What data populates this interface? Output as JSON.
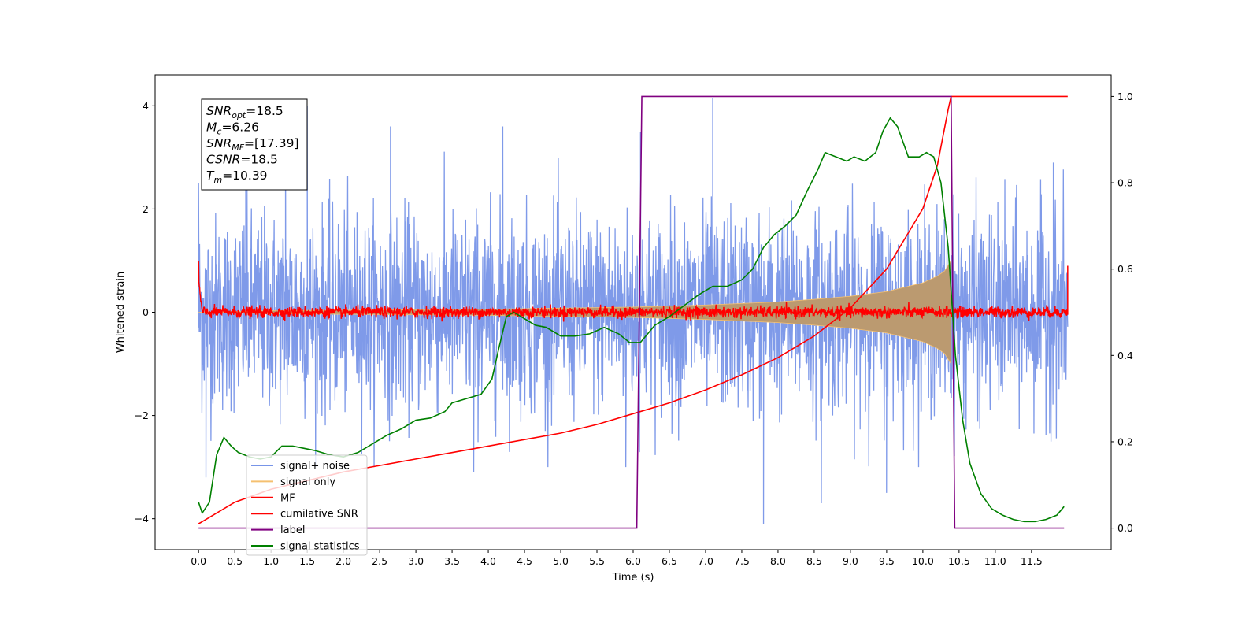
{
  "chart_data": {
    "type": "line",
    "title": "",
    "xlabel": "Time (s)",
    "ylabel": "Whitened strain",
    "y2label": "",
    "xlim": [
      -0.6,
      12.6
    ],
    "ylim": [
      -4.6,
      4.6
    ],
    "y2lim": [
      -0.05,
      1.05
    ],
    "x_ticks": [
      0.0,
      0.5,
      1.0,
      1.5,
      2.0,
      2.5,
      3.0,
      3.5,
      4.0,
      4.5,
      5.0,
      5.5,
      6.0,
      6.5,
      7.0,
      7.5,
      8.0,
      8.5,
      9.0,
      9.5,
      10.0,
      10.5,
      11.0,
      11.5
    ],
    "x_tick_labels": [
      "0.0",
      "0.5",
      "1.0",
      "1.5",
      "2.0",
      "2.5",
      "3.0",
      "3.5",
      "4.0",
      "4.5",
      "5.0",
      "5.5",
      "6.0",
      "6.5",
      "7.0",
      "7.5",
      "8.0",
      "8.5",
      "9.0",
      "9.5",
      "10.0",
      "10.5",
      "11.0",
      "11.5"
    ],
    "y_ticks": [
      -4,
      -2,
      0,
      2,
      4
    ],
    "y_tick_labels": [
      "−4",
      "−2",
      "0",
      "2",
      "4"
    ],
    "y2_ticks": [
      0.0,
      0.2,
      0.4,
      0.6,
      0.8,
      1.0
    ],
    "y2_tick_labels": [
      "0.0",
      "0.2",
      "0.4",
      "0.6",
      "0.8",
      "1.0"
    ],
    "grid": false,
    "legend_position": "lower-left",
    "annotation_box": {
      "position": "top-left",
      "lines": [
        {
          "symbol": "SNR",
          "sub": "opt",
          "value": "=18.5"
        },
        {
          "symbol": "M",
          "sub": "c",
          "value": "=6.26"
        },
        {
          "symbol": "SNR",
          "sub": "MF",
          "value": "=[17.39]"
        },
        {
          "symbol": "CSNR",
          "sub": "",
          "value": "=18.5"
        },
        {
          "symbol": "T",
          "sub": "m",
          "value": "=10.39"
        }
      ]
    },
    "series": [
      {
        "name": "signal+ noise",
        "kind": "noise_band",
        "axis": "left",
        "color": "#7895e8",
        "x_range": [
          0.0,
          12.0
        ],
        "typical_envelope": [
          -1.7,
          1.9
        ],
        "peaks": [
          {
            "x": 0.0,
            "y": 2.5
          },
          {
            "x": 0.1,
            "y": -3.2
          },
          {
            "x": 0.65,
            "y": 2.9
          },
          {
            "x": 1.2,
            "y": 3.9
          },
          {
            "x": 1.5,
            "y": 4.0
          },
          {
            "x": 1.95,
            "y": 3.5
          },
          {
            "x": 2.65,
            "y": 3.6
          },
          {
            "x": 3.8,
            "y": -3.1
          },
          {
            "x": 4.2,
            "y": 3.6
          },
          {
            "x": 5.9,
            "y": -3.0
          },
          {
            "x": 6.1,
            "y": 3.5
          },
          {
            "x": 7.1,
            "y": 4.15
          },
          {
            "x": 7.8,
            "y": -4.1
          },
          {
            "x": 8.6,
            "y": -3.7
          },
          {
            "x": 9.5,
            "y": -3.5
          },
          {
            "x": 11.8,
            "y": 2.9
          }
        ]
      },
      {
        "name": "signal only",
        "kind": "chirp_envelope",
        "axis": "left",
        "color": "#f5c070",
        "envelope": [
          {
            "x": 0.0,
            "a": 0.0
          },
          {
            "x": 1.0,
            "a": 0.03
          },
          {
            "x": 2.0,
            "a": 0.04
          },
          {
            "x": 3.0,
            "a": 0.05
          },
          {
            "x": 4.0,
            "a": 0.06
          },
          {
            "x": 5.0,
            "a": 0.08
          },
          {
            "x": 6.0,
            "a": 0.1
          },
          {
            "x": 7.0,
            "a": 0.14
          },
          {
            "x": 7.5,
            "a": 0.17
          },
          {
            "x": 8.0,
            "a": 0.2
          },
          {
            "x": 8.5,
            "a": 0.25
          },
          {
            "x": 9.0,
            "a": 0.31
          },
          {
            "x": 9.5,
            "a": 0.4
          },
          {
            "x": 10.0,
            "a": 0.57
          },
          {
            "x": 10.2,
            "a": 0.7
          },
          {
            "x": 10.3,
            "a": 0.8
          },
          {
            "x": 10.39,
            "a": 1.0
          },
          {
            "x": 10.4,
            "a": 0.0
          }
        ]
      },
      {
        "name": "MF",
        "kind": "noisy_flat",
        "axis": "left",
        "color": "#ff0000",
        "x_range": [
          0.0,
          12.0
        ],
        "center": 0.0,
        "amplitude": 0.12,
        "edge_spikes": [
          {
            "x": 0.0,
            "y": 1.0
          },
          {
            "x": 12.0,
            "y": 0.9
          }
        ]
      },
      {
        "name": "cumilative SNR",
        "kind": "line",
        "axis": "right",
        "color": "#ff0000",
        "points": [
          {
            "x": 0.0,
            "y": 0.01
          },
          {
            "x": 0.5,
            "y": 0.06
          },
          {
            "x": 1.0,
            "y": 0.09
          },
          {
            "x": 1.5,
            "y": 0.11
          },
          {
            "x": 2.0,
            "y": 0.13
          },
          {
            "x": 2.5,
            "y": 0.145
          },
          {
            "x": 3.0,
            "y": 0.16
          },
          {
            "x": 3.5,
            "y": 0.175
          },
          {
            "x": 4.0,
            "y": 0.19
          },
          {
            "x": 4.5,
            "y": 0.205
          },
          {
            "x": 5.0,
            "y": 0.22
          },
          {
            "x": 5.5,
            "y": 0.24
          },
          {
            "x": 6.0,
            "y": 0.265
          },
          {
            "x": 6.5,
            "y": 0.29
          },
          {
            "x": 7.0,
            "y": 0.32
          },
          {
            "x": 7.5,
            "y": 0.355
          },
          {
            "x": 8.0,
            "y": 0.395
          },
          {
            "x": 8.5,
            "y": 0.445
          },
          {
            "x": 9.0,
            "y": 0.51
          },
          {
            "x": 9.5,
            "y": 0.6
          },
          {
            "x": 10.0,
            "y": 0.74
          },
          {
            "x": 10.2,
            "y": 0.84
          },
          {
            "x": 10.35,
            "y": 0.97
          },
          {
            "x": 10.39,
            "y": 1.0
          },
          {
            "x": 12.0,
            "y": 1.0
          }
        ]
      },
      {
        "name": "label",
        "kind": "line",
        "axis": "right",
        "color": "#800080",
        "points": [
          {
            "x": 0.0,
            "y": 0.0
          },
          {
            "x": 6.05,
            "y": 0.0
          },
          {
            "x": 6.12,
            "y": 1.0
          },
          {
            "x": 10.39,
            "y": 1.0
          },
          {
            "x": 10.44,
            "y": 0.0
          },
          {
            "x": 11.95,
            "y": 0.0
          }
        ]
      },
      {
        "name": "signal statistics",
        "kind": "line",
        "axis": "right",
        "color": "#008000",
        "points": [
          {
            "x": 0.0,
            "y": 0.06
          },
          {
            "x": 0.05,
            "y": 0.035
          },
          {
            "x": 0.15,
            "y": 0.06
          },
          {
            "x": 0.25,
            "y": 0.17
          },
          {
            "x": 0.35,
            "y": 0.21
          },
          {
            "x": 0.45,
            "y": 0.19
          },
          {
            "x": 0.55,
            "y": 0.175
          },
          {
            "x": 0.7,
            "y": 0.165
          },
          {
            "x": 0.85,
            "y": 0.16
          },
          {
            "x": 1.0,
            "y": 0.165
          },
          {
            "x": 1.15,
            "y": 0.19
          },
          {
            "x": 1.3,
            "y": 0.19
          },
          {
            "x": 1.45,
            "y": 0.185
          },
          {
            "x": 1.6,
            "y": 0.18
          },
          {
            "x": 1.8,
            "y": 0.17
          },
          {
            "x": 2.0,
            "y": 0.165
          },
          {
            "x": 2.2,
            "y": 0.175
          },
          {
            "x": 2.4,
            "y": 0.195
          },
          {
            "x": 2.6,
            "y": 0.215
          },
          {
            "x": 2.8,
            "y": 0.23
          },
          {
            "x": 3.0,
            "y": 0.25
          },
          {
            "x": 3.2,
            "y": 0.255
          },
          {
            "x": 3.4,
            "y": 0.27
          },
          {
            "x": 3.5,
            "y": 0.29
          },
          {
            "x": 3.7,
            "y": 0.3
          },
          {
            "x": 3.9,
            "y": 0.31
          },
          {
            "x": 4.05,
            "y": 0.345
          },
          {
            "x": 4.15,
            "y": 0.42
          },
          {
            "x": 4.25,
            "y": 0.49
          },
          {
            "x": 4.35,
            "y": 0.5
          },
          {
            "x": 4.5,
            "y": 0.485
          },
          {
            "x": 4.65,
            "y": 0.47
          },
          {
            "x": 4.8,
            "y": 0.465
          },
          {
            "x": 5.0,
            "y": 0.445
          },
          {
            "x": 5.2,
            "y": 0.445
          },
          {
            "x": 5.4,
            "y": 0.45
          },
          {
            "x": 5.6,
            "y": 0.465
          },
          {
            "x": 5.8,
            "y": 0.45
          },
          {
            "x": 5.95,
            "y": 0.43
          },
          {
            "x": 6.1,
            "y": 0.43
          },
          {
            "x": 6.3,
            "y": 0.47
          },
          {
            "x": 6.5,
            "y": 0.49
          },
          {
            "x": 6.7,
            "y": 0.515
          },
          {
            "x": 6.9,
            "y": 0.54
          },
          {
            "x": 7.1,
            "y": 0.56
          },
          {
            "x": 7.3,
            "y": 0.56
          },
          {
            "x": 7.5,
            "y": 0.575
          },
          {
            "x": 7.65,
            "y": 0.6
          },
          {
            "x": 7.8,
            "y": 0.65
          },
          {
            "x": 7.95,
            "y": 0.68
          },
          {
            "x": 8.1,
            "y": 0.7
          },
          {
            "x": 8.25,
            "y": 0.725
          },
          {
            "x": 8.4,
            "y": 0.78
          },
          {
            "x": 8.55,
            "y": 0.83
          },
          {
            "x": 8.65,
            "y": 0.87
          },
          {
            "x": 8.8,
            "y": 0.86
          },
          {
            "x": 8.95,
            "y": 0.85
          },
          {
            "x": 9.05,
            "y": 0.86
          },
          {
            "x": 9.2,
            "y": 0.85
          },
          {
            "x": 9.35,
            "y": 0.87
          },
          {
            "x": 9.45,
            "y": 0.92
          },
          {
            "x": 9.55,
            "y": 0.95
          },
          {
            "x": 9.65,
            "y": 0.93
          },
          {
            "x": 9.8,
            "y": 0.86
          },
          {
            "x": 9.95,
            "y": 0.86
          },
          {
            "x": 10.05,
            "y": 0.87
          },
          {
            "x": 10.15,
            "y": 0.86
          },
          {
            "x": 10.25,
            "y": 0.8
          },
          {
            "x": 10.35,
            "y": 0.65
          },
          {
            "x": 10.45,
            "y": 0.4
          },
          {
            "x": 10.55,
            "y": 0.25
          },
          {
            "x": 10.65,
            "y": 0.15
          },
          {
            "x": 10.8,
            "y": 0.08
          },
          {
            "x": 10.95,
            "y": 0.045
          },
          {
            "x": 11.1,
            "y": 0.03
          },
          {
            "x": 11.25,
            "y": 0.02
          },
          {
            "x": 11.4,
            "y": 0.015
          },
          {
            "x": 11.55,
            "y": 0.015
          },
          {
            "x": 11.7,
            "y": 0.02
          },
          {
            "x": 11.85,
            "y": 0.03
          },
          {
            "x": 11.95,
            "y": 0.05
          }
        ]
      }
    ]
  }
}
